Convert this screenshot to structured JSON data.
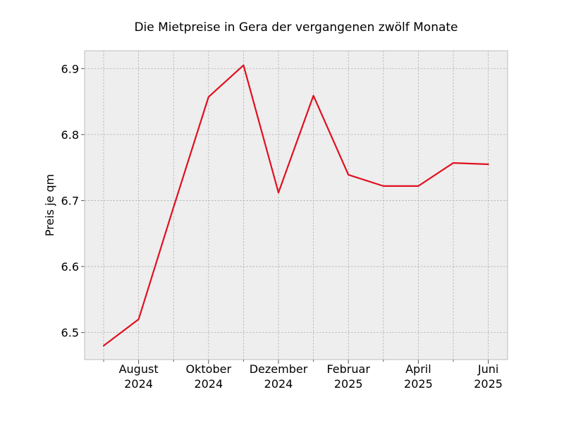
{
  "chart_data": {
    "type": "line",
    "title": "Die Mietpreise in Gera der vergangenen zwölf Monate",
    "xlabel": "",
    "ylabel": "Preis je qm",
    "x": [
      "2024-07",
      "2024-08",
      "2024-09",
      "2024-10",
      "2024-11",
      "2024-12",
      "2025-01",
      "2025-02",
      "2025-03",
      "2025-04",
      "2025-05",
      "2025-06"
    ],
    "series": [
      {
        "values": [
          6.48,
          6.52,
          6.69,
          6.857,
          6.905,
          6.712,
          6.859,
          6.739,
          6.722,
          6.722,
          6.757,
          6.755
        ],
        "color": "#e0101f"
      }
    ],
    "x_tick_labels": [
      {
        "month": "2024-08",
        "line1": "August",
        "line2": "2024"
      },
      {
        "month": "2024-10",
        "line1": "Oktober",
        "line2": "2024"
      },
      {
        "month": "2024-12",
        "line1": "Dezember",
        "line2": "2024"
      },
      {
        "month": "2025-02",
        "line1": "Februar",
        "line2": "2025"
      },
      {
        "month": "2025-04",
        "line1": "April",
        "line2": "2025"
      },
      {
        "month": "2025-06",
        "line1": "Juni",
        "line2": "2025"
      }
    ],
    "y_ticks": [
      "6.5",
      "6.6",
      "6.7",
      "6.8",
      "6.9"
    ],
    "ylim": [
      6.459,
      6.927
    ],
    "grid": true,
    "legend": "none",
    "background_color": "#eeeeee",
    "grid_color": "#b0b0b0"
  }
}
